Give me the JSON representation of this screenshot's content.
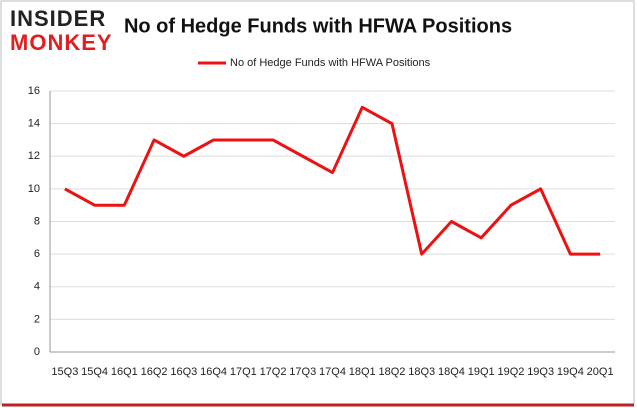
{
  "logo": {
    "line1": "INSIDER",
    "line2": "MONKEY"
  },
  "chart_data": {
    "type": "line",
    "title": "No of Hedge Funds with HFWA Positions",
    "categories": [
      "15Q3",
      "15Q4",
      "16Q1",
      "16Q2",
      "16Q3",
      "16Q4",
      "17Q1",
      "17Q2",
      "17Q3",
      "17Q4",
      "18Q1",
      "18Q2",
      "18Q3",
      "18Q4",
      "19Q1",
      "19Q2",
      "19Q3",
      "19Q4",
      "20Q1"
    ],
    "series": [
      {
        "name": "No of Hedge Funds with HFWA Positions",
        "color": "#ee1111",
        "values": [
          10,
          9,
          9,
          13,
          12,
          13,
          13,
          13,
          12,
          11,
          15,
          14,
          6,
          8,
          7,
          9,
          10,
          6,
          6
        ]
      }
    ],
    "ylim": [
      0,
      16
    ],
    "yticks": [
      0,
      2,
      4,
      6,
      8,
      10,
      12,
      14,
      16
    ],
    "grid": true,
    "legend": "top"
  }
}
